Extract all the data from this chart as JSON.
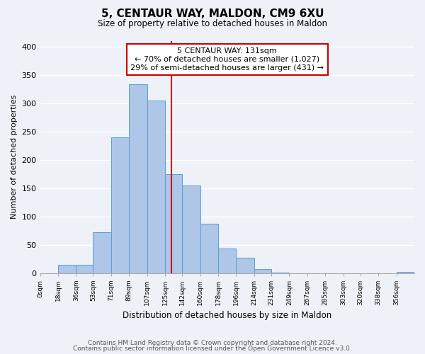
{
  "title": "5, CENTAUR WAY, MALDON, CM9 6XU",
  "subtitle": "Size of property relative to detached houses in Maldon",
  "xlabel": "Distribution of detached houses by size in Maldon",
  "ylabel": "Number of detached properties",
  "footer_line1": "Contains HM Land Registry data © Crown copyright and database right 2024.",
  "footer_line2": "Contains public sector information licensed under the Open Government Licence v3.0.",
  "bin_labels": [
    "0sqm",
    "18sqm",
    "36sqm",
    "53sqm",
    "71sqm",
    "89sqm",
    "107sqm",
    "125sqm",
    "142sqm",
    "160sqm",
    "178sqm",
    "196sqm",
    "214sqm",
    "231sqm",
    "249sqm",
    "267sqm",
    "285sqm",
    "303sqm",
    "320sqm",
    "338sqm",
    "356sqm"
  ],
  "bar_values": [
    0,
    15,
    15,
    72,
    240,
    333,
    305,
    175,
    155,
    87,
    44,
    27,
    7,
    1,
    0,
    0,
    0,
    0,
    0,
    0,
    2
  ],
  "bar_color": "#aec6e8",
  "bar_edge_color": "#5a9fd4",
  "annotation_line1": "5 CENTAUR WAY: 131sqm",
  "annotation_line2": "← 70% of detached houses are smaller (1,027)",
  "annotation_line3": "29% of semi-detached houses are larger (431) →",
  "annotation_box_edge": "#cc0000",
  "annotation_box_fill": "#ffffff",
  "property_line_x": 131,
  "property_line_color": "#cc0000",
  "ylim": [
    0,
    410
  ],
  "background_color": "#eef2f8",
  "grid_color": "#ffffff",
  "bin_edges": [
    0,
    18,
    36,
    53,
    71,
    89,
    107,
    125,
    142,
    160,
    178,
    196,
    214,
    231,
    249,
    267,
    285,
    303,
    320,
    338,
    356,
    374
  ]
}
